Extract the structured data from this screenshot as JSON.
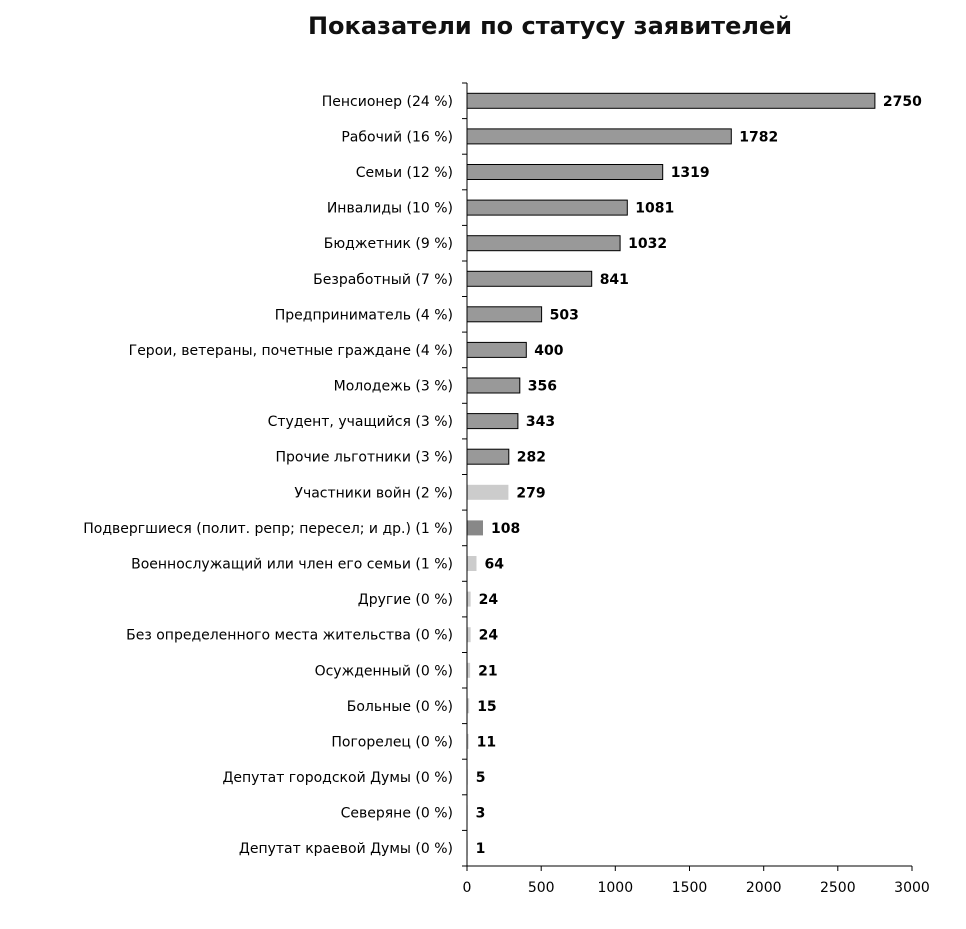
{
  "chart_data": {
    "type": "bar",
    "orientation": "horizontal",
    "title": "Показатели по статусу заявителей",
    "categories": [
      "Пенсионер (24 %)",
      "Рабочий (16 %)",
      "Семьи (12 %)",
      "Инвалиды (10 %)",
      "Бюджетник (9 %)",
      "Безработный (7 %)",
      "Предприниматель (4 %)",
      "Герои, ветераны, почетные граждане (4 %)",
      "Молодежь (3 %)",
      "Студент, учащийся (3 %)",
      "Прочие льготники (3 %)",
      "Участники войн (2 %)",
      "Подвергшиеся (полит. репр; пересел; и др.) (1 %)",
      "Военнослужащий или член его семьи (1 %)",
      "Другие (0 %)",
      "Без определенного места жительства (0 %)",
      "Осужденный (0 %)",
      "Больные (0 %)",
      "Погорелец (0 %)",
      "Депутат городской Думы (0 %)",
      "Северяне (0 %)",
      "Депутат краевой Думы (0 %)"
    ],
    "values": [
      2750,
      1782,
      1319,
      1081,
      1032,
      841,
      503,
      400,
      356,
      343,
      282,
      279,
      108,
      64,
      24,
      24,
      21,
      15,
      11,
      5,
      3,
      1
    ],
    "xlim": [
      0,
      3000
    ],
    "xticks": [
      0,
      500,
      1000,
      1500,
      2000,
      2500,
      3000
    ],
    "grid": false,
    "colors": {
      "bar_fill": "#999999",
      "bar_stroke": "#000000",
      "bar_light": "#cccccc",
      "bar_mid": "#888888"
    }
  }
}
